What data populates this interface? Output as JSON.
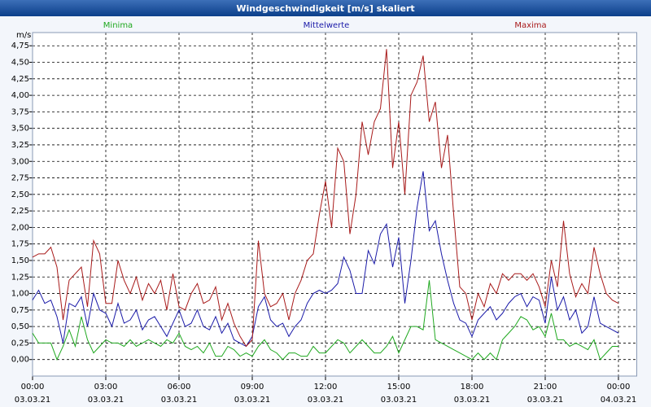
{
  "chart_data": {
    "type": "line",
    "title": "Windgeschwindigkeit [m/s] skaliert",
    "y_label": "m/s",
    "x": [
      0,
      15,
      30,
      45,
      60,
      75,
      90,
      105,
      120,
      135,
      150,
      165,
      180,
      195,
      210,
      225,
      240,
      255,
      270,
      285,
      300,
      315,
      330,
      345,
      360,
      375,
      390,
      405,
      420,
      435,
      450,
      465,
      480,
      495,
      510,
      525,
      540,
      555,
      570,
      585,
      600,
      615,
      630,
      645,
      660,
      675,
      690,
      705,
      720,
      735,
      750,
      765,
      780,
      795,
      810,
      825,
      840,
      855,
      870,
      885,
      900,
      915,
      930,
      945,
      960,
      975,
      990,
      1005,
      1020,
      1035,
      1050,
      1065,
      1080,
      1095,
      1110,
      1125,
      1140,
      1155,
      1170,
      1185,
      1200,
      1215,
      1230,
      1245,
      1260,
      1275,
      1290,
      1305,
      1320,
      1335,
      1350,
      1365,
      1380,
      1395,
      1410,
      1425,
      1440
    ],
    "series": [
      {
        "name": "Minima",
        "color": "#1fa81f",
        "values": [
          0.4,
          0.25,
          0.25,
          0.25,
          0.0,
          0.2,
          0.45,
          0.2,
          0.65,
          0.3,
          0.1,
          0.2,
          0.3,
          0.25,
          0.25,
          0.2,
          0.3,
          0.2,
          0.25,
          0.3,
          0.25,
          0.2,
          0.3,
          0.25,
          0.4,
          0.2,
          0.15,
          0.2,
          0.1,
          0.25,
          0.05,
          0.05,
          0.2,
          0.15,
          0.05,
          0.1,
          0.05,
          0.2,
          0.3,
          0.15,
          0.1,
          0.0,
          0.1,
          0.1,
          0.05,
          0.05,
          0.2,
          0.1,
          0.1,
          0.2,
          0.3,
          0.25,
          0.1,
          0.2,
          0.3,
          0.2,
          0.1,
          0.1,
          0.2,
          0.35,
          0.1,
          0.3,
          0.5,
          0.5,
          0.45,
          1.2,
          0.3,
          0.25,
          0.2,
          0.15,
          0.1,
          0.05,
          0.0,
          0.1,
          0.0,
          0.1,
          0.0,
          0.3,
          0.4,
          0.5,
          0.65,
          0.6,
          0.45,
          0.5,
          0.35,
          0.7,
          0.3,
          0.3,
          0.2,
          0.25,
          0.2,
          0.15,
          0.3,
          0.0,
          0.1,
          0.2,
          0.2
        ]
      },
      {
        "name": "Mittelwerte",
        "color": "#1a1aa8",
        "values": [
          0.9,
          1.05,
          0.85,
          0.9,
          0.65,
          0.25,
          0.85,
          0.8,
          0.95,
          0.5,
          1.0,
          0.75,
          0.7,
          0.5,
          0.85,
          0.55,
          0.6,
          0.75,
          0.45,
          0.6,
          0.65,
          0.5,
          0.35,
          0.55,
          0.75,
          0.5,
          0.55,
          0.75,
          0.5,
          0.45,
          0.65,
          0.4,
          0.55,
          0.3,
          0.25,
          0.2,
          0.35,
          0.8,
          0.95,
          0.6,
          0.5,
          0.55,
          0.35,
          0.5,
          0.6,
          0.85,
          1.0,
          1.05,
          1.0,
          1.05,
          1.15,
          1.55,
          1.35,
          1.0,
          1.0,
          1.65,
          1.45,
          1.9,
          2.05,
          1.4,
          1.85,
          0.85,
          1.5,
          2.3,
          2.85,
          1.95,
          2.1,
          1.6,
          1.2,
          0.85,
          0.6,
          0.55,
          0.35,
          0.6,
          0.7,
          0.8,
          0.6,
          0.7,
          0.85,
          0.95,
          1.0,
          0.8,
          0.95,
          0.9,
          0.55,
          1.25,
          0.75,
          0.95,
          0.6,
          0.75,
          0.4,
          0.5,
          0.95,
          0.55,
          0.5,
          0.45,
          0.4
        ]
      },
      {
        "name": "Maxima",
        "color": "#a81a1a",
        "values": [
          1.55,
          1.6,
          1.6,
          1.7,
          1.4,
          0.6,
          1.2,
          1.3,
          1.4,
          0.8,
          1.8,
          1.6,
          0.85,
          0.85,
          1.5,
          1.2,
          1.0,
          1.25,
          0.9,
          1.15,
          1.0,
          1.2,
          0.75,
          1.3,
          0.8,
          0.75,
          1.0,
          1.15,
          0.85,
          0.9,
          1.1,
          0.6,
          0.85,
          0.55,
          0.35,
          0.2,
          0.3,
          1.8,
          1.0,
          0.8,
          0.85,
          1.0,
          0.6,
          1.0,
          1.2,
          1.5,
          1.6,
          2.2,
          2.7,
          2.0,
          3.2,
          3.0,
          1.9,
          2.5,
          3.6,
          3.1,
          3.6,
          3.8,
          4.7,
          2.9,
          3.6,
          2.5,
          4.0,
          4.2,
          4.6,
          3.6,
          3.9,
          2.9,
          3.4,
          2.2,
          1.1,
          1.0,
          0.6,
          1.0,
          0.8,
          1.15,
          1.0,
          1.3,
          1.2,
          1.3,
          1.3,
          1.2,
          1.3,
          1.1,
          0.8,
          1.5,
          1.1,
          2.1,
          1.3,
          0.95,
          1.15,
          1.0,
          1.7,
          1.3,
          1.0,
          0.9,
          0.85
        ]
      }
    ],
    "xlim": [
      0,
      1485
    ],
    "ylim": [
      -0.25,
      4.95
    ],
    "xticks": [
      {
        "value": 0,
        "label": "00:00",
        "date": "03.03.21"
      },
      {
        "value": 180,
        "label": "03:00",
        "date": "03.03.21"
      },
      {
        "value": 360,
        "label": "06:00",
        "date": "03.03.21"
      },
      {
        "value": 540,
        "label": "09:00",
        "date": "03.03.21"
      },
      {
        "value": 720,
        "label": "12:00",
        "date": "03.03.21"
      },
      {
        "value": 900,
        "label": "15:00",
        "date": "03.03.21"
      },
      {
        "value": 1080,
        "label": "18:00",
        "date": "03.03.21"
      },
      {
        "value": 1260,
        "label": "21:00",
        "date": "03.03.21"
      },
      {
        "value": 1440,
        "label": "00:00",
        "date": "04.03.21"
      }
    ],
    "yticks": [
      {
        "value": 0,
        "label": "0,00"
      },
      {
        "value": 0.25,
        "label": "0,25"
      },
      {
        "value": 0.5,
        "label": "0,50"
      },
      {
        "value": 0.75,
        "label": "0,75"
      },
      {
        "value": 1,
        "label": "1,00"
      },
      {
        "value": 1.25,
        "label": "1,25"
      },
      {
        "value": 1.5,
        "label": "1,50"
      },
      {
        "value": 1.75,
        "label": "1,75"
      },
      {
        "value": 2,
        "label": "2,00"
      },
      {
        "value": 2.25,
        "label": "2,25"
      },
      {
        "value": 2.5,
        "label": "2,50"
      },
      {
        "value": 2.75,
        "label": "2,75"
      },
      {
        "value": 3,
        "label": "3,00"
      },
      {
        "value": 3.25,
        "label": "3,25"
      },
      {
        "value": 3.5,
        "label": "3,50"
      },
      {
        "value": 3.75,
        "label": "3,75"
      },
      {
        "value": 4,
        "label": "4,00"
      },
      {
        "value": 4.25,
        "label": "4,25"
      },
      {
        "value": 4.5,
        "label": "4,50"
      },
      {
        "value": 4.75,
        "label": "4,75"
      }
    ],
    "grid": true
  }
}
